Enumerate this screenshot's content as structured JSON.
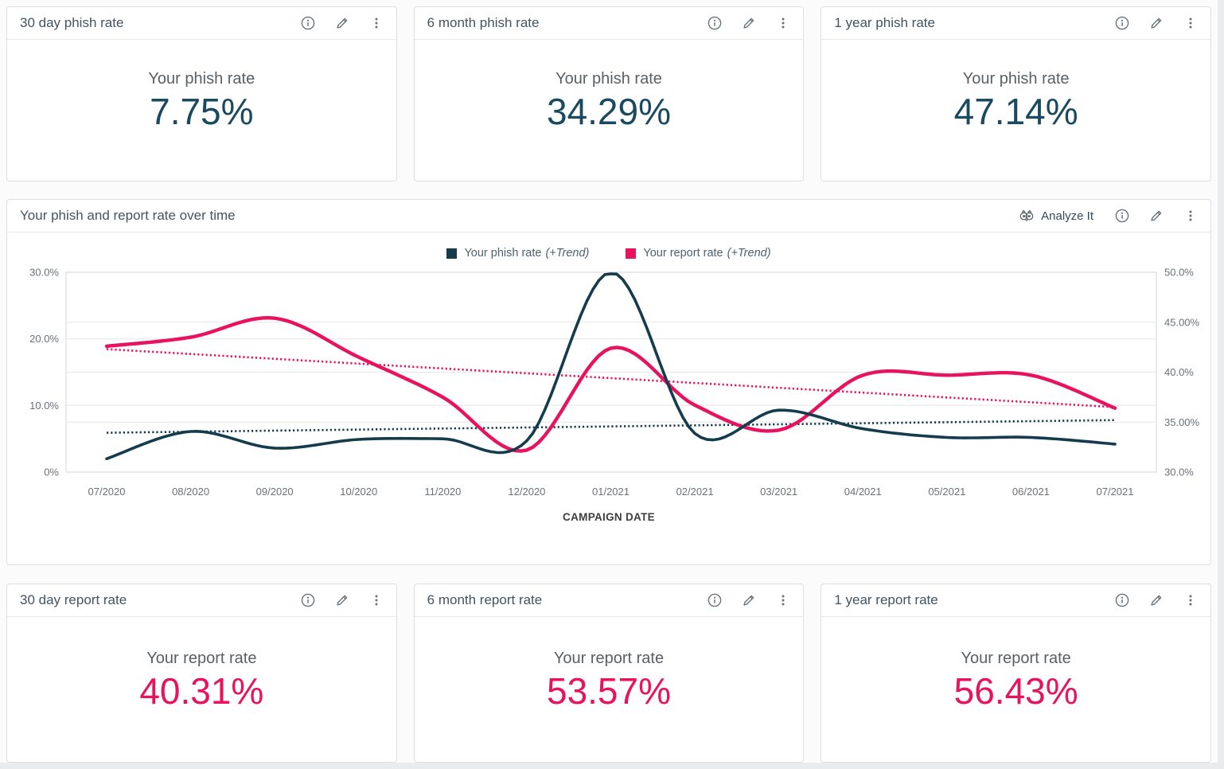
{
  "colors": {
    "phish_navy": "#143C4D",
    "phish_value_navy": "#1A4A5F",
    "report_pink": "#E8125F",
    "grid_line": "#e5e6e7",
    "plot_border": "#d2d5d7",
    "axis_text": "#6a7177",
    "icon_gray": "#68727b"
  },
  "icons": {
    "header": [
      "info-icon",
      "pencil-icon",
      "kebab-menu-icon"
    ],
    "analyze": "owl-icon"
  },
  "stat_cards": [
    {
      "title": "30 day phish rate",
      "label": "Your phish rate",
      "value": "7.75%",
      "color": "#1A4A5F"
    },
    {
      "title": "6 month phish rate",
      "label": "Your phish rate",
      "value": "34.29%",
      "color": "#1A4A5F"
    },
    {
      "title": "1 year phish rate",
      "label": "Your phish rate",
      "value": "47.14%",
      "color": "#1A4A5F"
    },
    {
      "title": "30 day report rate",
      "label": "Your report rate",
      "value": "40.31%",
      "color": "#E8125F"
    },
    {
      "title": "6 month report rate",
      "label": "Your report rate",
      "value": "53.57%",
      "color": "#E8125F"
    },
    {
      "title": "1 year report rate",
      "label": "Your report rate",
      "value": "56.43%",
      "color": "#E8125F"
    }
  ],
  "chart_card": {
    "title": "Your phish and report rate over time",
    "analyze_label": "Analyze It",
    "xlabel": "CAMPAIGN DATE"
  },
  "chart_data": {
    "type": "line",
    "title": "Your phish and report rate over time",
    "xlabel": "CAMPAIGN DATE",
    "grid": true,
    "legend_position": "top",
    "x_categories": [
      "07/2020",
      "08/2020",
      "09/2020",
      "10/2020",
      "11/2020",
      "12/2020",
      "01/2021",
      "02/2021",
      "03/2021",
      "04/2021",
      "05/2021",
      "06/2021",
      "07/2021"
    ],
    "left_axis": {
      "range": [
        0,
        30
      ],
      "tick_labels": [
        "30.0%",
        "20.0%",
        "10.0%",
        "0%"
      ],
      "tick_values": [
        30,
        20,
        10,
        0
      ]
    },
    "right_axis": {
      "range": [
        30,
        50
      ],
      "tick_labels": [
        "50.0%",
        "45.00%",
        "40.0%",
        "35.00%",
        "30.0%"
      ],
      "tick_values": [
        50,
        45,
        40,
        35,
        30
      ]
    },
    "gridlines_left_scale": [
      7.5,
      10,
      15,
      20,
      22.5
    ],
    "series": [
      {
        "name": "Your phish rate",
        "axis": "left",
        "color": "#143C4D",
        "values": [
          2.0,
          6.1,
          3.6,
          4.9,
          5.0,
          4.7,
          30.0,
          5.8,
          9.3,
          6.5,
          5.2,
          5.2,
          4.2
        ],
        "trend": {
          "type": "linear",
          "start": 5.9,
          "end": 7.8
        }
      },
      {
        "name": "Your report rate",
        "axis": "right",
        "color": "#E8125F",
        "values": [
          42.6,
          43.5,
          45.4,
          41.5,
          37.5,
          32.2,
          42.4,
          36.7,
          34.2,
          39.7,
          39.7,
          39.7,
          36.4
        ],
        "trend": {
          "type": "linear",
          "start": 42.3,
          "end": 36.5
        }
      }
    ],
    "legend": [
      {
        "label": "Your phish rate",
        "trend_label": "(+Trend)",
        "color": "#143C4D"
      },
      {
        "label": "Your report rate",
        "trend_label": "(+Trend)",
        "color": "#E8125F"
      }
    ]
  }
}
